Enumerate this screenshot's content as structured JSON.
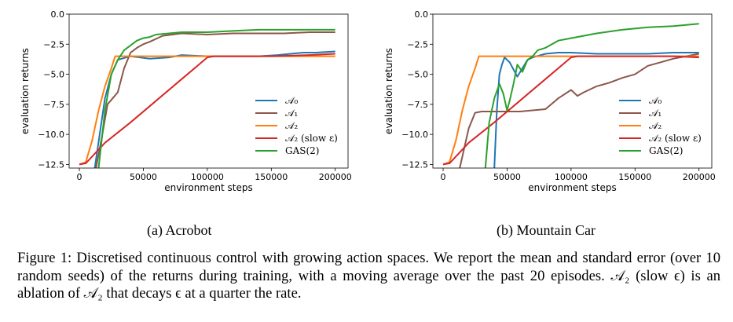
{
  "chart_data": [
    {
      "type": "line",
      "caption": "(a) Acrobot",
      "xlabel": "environment steps",
      "ylabel": "evaluation returns",
      "xlim": [
        -8000,
        210000
      ],
      "ylim": [
        -12.8,
        0.0
      ],
      "xticks": [
        "0",
        "50000",
        "100000",
        "150000",
        "200000"
      ],
      "yticks": [
        "0.0",
        "−2.5",
        "−5.0",
        "−7.5",
        "−10.0",
        "−12.5"
      ],
      "legend_position": "lower-right",
      "series": [
        {
          "name": "A0",
          "legend": "𝒜₀",
          "color": "#1f77b4",
          "x": [
            12000,
            20000,
            25000,
            30000,
            40000,
            55000,
            70000,
            80000,
            100000,
            120000,
            140000,
            155000,
            165000,
            175000,
            185000,
            200000
          ],
          "y": [
            -12.8,
            -7.0,
            -5.0,
            -3.8,
            -3.5,
            -3.7,
            -3.6,
            -3.4,
            -3.5,
            -3.5,
            -3.5,
            -3.4,
            -3.3,
            -3.2,
            -3.2,
            -3.1
          ]
        },
        {
          "name": "A1",
          "legend": "𝒜₁",
          "color": "#8c564b",
          "x": [
            13000,
            18000,
            22000,
            26000,
            30000,
            35000,
            40000,
            45000,
            50000,
            55000,
            65000,
            80000,
            100000,
            120000,
            140000,
            160000,
            180000,
            200000
          ],
          "y": [
            -12.8,
            -10.0,
            -7.5,
            -7.0,
            -6.5,
            -4.5,
            -3.2,
            -2.8,
            -2.5,
            -2.3,
            -1.8,
            -1.6,
            -1.7,
            -1.6,
            -1.6,
            -1.6,
            -1.5,
            -1.5
          ]
        },
        {
          "name": "A2",
          "legend": "𝒜₂",
          "color": "#ff7f0e",
          "x": [
            0,
            5000,
            10000,
            15000,
            20000,
            25000,
            28000,
            40000,
            80000,
            120000,
            160000,
            200000
          ],
          "y": [
            -12.5,
            -12.3,
            -10.5,
            -8.0,
            -6.0,
            -4.5,
            -3.5,
            -3.5,
            -3.5,
            -3.5,
            -3.5,
            -3.5
          ]
        },
        {
          "name": "A2 (slow ε)",
          "legend": "𝒜₂ (slow ε)",
          "color": "#d62728",
          "x": [
            0,
            5000,
            20000,
            40000,
            60000,
            80000,
            100000,
            105000,
            120000,
            150000,
            180000,
            200000
          ],
          "y": [
            -12.5,
            -12.4,
            -10.7,
            -9.0,
            -7.2,
            -5.4,
            -3.6,
            -3.5,
            -3.5,
            -3.5,
            -3.4,
            -3.3
          ]
        },
        {
          "name": "GAS(2)",
          "legend": "GAS(2)",
          "color": "#2ca02c",
          "x": [
            15000,
            20000,
            25000,
            30000,
            35000,
            40000,
            45000,
            50000,
            55000,
            60000,
            70000,
            80000,
            100000,
            120000,
            140000,
            160000,
            180000,
            200000
          ],
          "y": [
            -12.8,
            -8.0,
            -5.0,
            -3.8,
            -3.0,
            -2.6,
            -2.2,
            -2.0,
            -1.9,
            -1.7,
            -1.6,
            -1.5,
            -1.5,
            -1.4,
            -1.3,
            -1.3,
            -1.3,
            -1.3
          ]
        }
      ]
    },
    {
      "type": "line",
      "caption": "(b) Mountain Car",
      "xlabel": "environment steps",
      "ylabel": "evaluation returns",
      "xlim": [
        -8000,
        210000
      ],
      "ylim": [
        -12.8,
        0.0
      ],
      "xticks": [
        "0",
        "50000",
        "100000",
        "150000",
        "200000"
      ],
      "yticks": [
        "0.0",
        "−2.5",
        "−5.0",
        "−7.5",
        "−10.0",
        "−12.5"
      ],
      "legend_position": "lower-right",
      "series": [
        {
          "name": "A0",
          "legend": "𝒜₀",
          "color": "#1f77b4",
          "x": [
            40000,
            42000,
            44000,
            46000,
            48000,
            52000,
            58000,
            62000,
            66000,
            70000,
            80000,
            90000,
            100000,
            120000,
            140000,
            160000,
            180000,
            200000
          ],
          "y": [
            -12.8,
            -8.0,
            -5.0,
            -4.2,
            -3.6,
            -4.0,
            -5.2,
            -4.5,
            -3.8,
            -3.6,
            -3.3,
            -3.2,
            -3.2,
            -3.3,
            -3.3,
            -3.3,
            -3.2,
            -3.2
          ]
        },
        {
          "name": "A1",
          "legend": "𝒜₁",
          "color": "#8c564b",
          "x": [
            13000,
            20000,
            25000,
            30000,
            40000,
            60000,
            80000,
            90000,
            100000,
            105000,
            110000,
            120000,
            130000,
            140000,
            150000,
            160000,
            170000,
            180000,
            190000,
            200000
          ],
          "y": [
            -12.8,
            -9.5,
            -8.2,
            -8.1,
            -8.1,
            -8.1,
            -7.9,
            -7.0,
            -6.3,
            -6.8,
            -6.5,
            -6.0,
            -5.7,
            -5.3,
            -5.0,
            -4.3,
            -4.0,
            -3.7,
            -3.5,
            -3.3
          ]
        },
        {
          "name": "A2",
          "legend": "𝒜₂",
          "color": "#ff7f0e",
          "x": [
            0,
            5000,
            10000,
            15000,
            20000,
            25000,
            28000,
            40000,
            80000,
            120000,
            160000,
            200000
          ],
          "y": [
            -12.5,
            -12.3,
            -10.5,
            -8.0,
            -6.0,
            -4.5,
            -3.5,
            -3.5,
            -3.5,
            -3.5,
            -3.5,
            -3.5
          ]
        },
        {
          "name": "A2 (slow ε)",
          "legend": "𝒜₂ (slow ε)",
          "color": "#d62728",
          "x": [
            0,
            5000,
            20000,
            40000,
            60000,
            80000,
            100000,
            105000,
            120000,
            150000,
            180000,
            200000
          ],
          "y": [
            -12.5,
            -12.4,
            -10.7,
            -9.0,
            -7.2,
            -5.4,
            -3.6,
            -3.5,
            -3.5,
            -3.5,
            -3.5,
            -3.6
          ]
        },
        {
          "name": "GAS(2)",
          "legend": "GAS(2)",
          "color": "#2ca02c",
          "x": [
            33000,
            36000,
            40000,
            44000,
            47000,
            50000,
            52000,
            55000,
            58000,
            62000,
            66000,
            70000,
            74000,
            80000,
            90000,
            100000,
            120000,
            140000,
            160000,
            180000,
            190000,
            200000
          ],
          "y": [
            -12.8,
            -9.0,
            -7.0,
            -5.8,
            -6.6,
            -8.0,
            -7.2,
            -5.8,
            -4.2,
            -4.8,
            -3.8,
            -3.5,
            -3.0,
            -2.8,
            -2.2,
            -2.0,
            -1.6,
            -1.3,
            -1.1,
            -1.0,
            -0.9,
            -0.8
          ]
        }
      ]
    }
  ],
  "caption": {
    "text": "Figure 1: Discretised continuous control with growing action spaces. We report the mean and standard error (over 10 random seeds) of the returns during training, with a moving average over the past 20 episodes. 𝒜₂ (slow ϵ) is an ablation of 𝒜₂ that decays ϵ at a quarter the rate."
  }
}
